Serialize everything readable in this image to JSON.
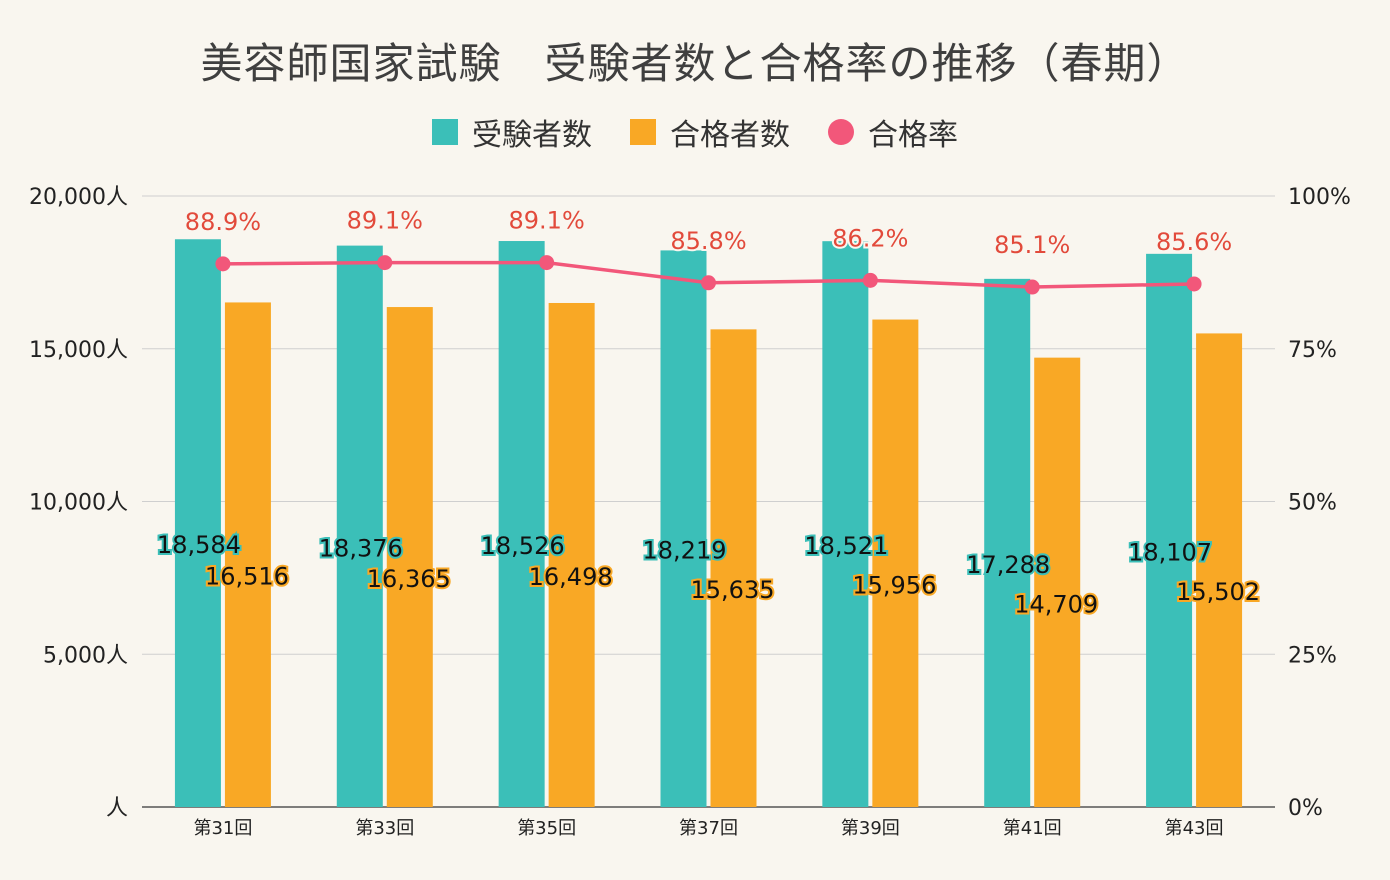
{
  "chart_data": {
    "type": "bar",
    "title": "美容師国家試験　受験者数と合格率の推移（春期）",
    "categories": [
      "第31回",
      "第33回",
      "第35回",
      "第37回",
      "第39回",
      "第41回",
      "第43回"
    ],
    "series": [
      {
        "name": "受験者数",
        "type": "bar",
        "axis": "left",
        "color": "#3bbfb8",
        "values": [
          18584,
          18376,
          18526,
          18219,
          18521,
          17288,
          18107
        ],
        "labels": [
          "18,584",
          "18,376",
          "18,526",
          "18,219",
          "18,521",
          "17,288",
          "18,107"
        ]
      },
      {
        "name": "合格者数",
        "type": "bar",
        "axis": "left",
        "color": "#f9a825",
        "values": [
          16516,
          16365,
          16498,
          15635,
          15956,
          14709,
          15502
        ],
        "labels": [
          "16,516",
          "16,365",
          "16,498",
          "15,635",
          "15,956",
          "14,709",
          "15,502"
        ]
      },
      {
        "name": "合格率",
        "type": "line",
        "axis": "right",
        "color": "#f2577a",
        "values": [
          88.9,
          89.1,
          89.1,
          85.8,
          86.2,
          85.1,
          85.6
        ],
        "labels": [
          "88.9%",
          "89.1%",
          "89.1%",
          "85.8%",
          "86.2%",
          "85.1%",
          "85.6%"
        ]
      }
    ],
    "ylim_left": [
      0,
      20000
    ],
    "ylim_right": [
      0,
      100
    ],
    "left_ticks": [
      "人",
      "5,000人",
      "10,000人",
      "15,000人",
      "20,000人"
    ],
    "right_ticks": [
      "0%",
      "25%",
      "50%",
      "75%",
      "100%"
    ],
    "grid": true,
    "legend_position": "top-center",
    "colors": {
      "rate_label": "#e24a3b",
      "gridline": "#cfcfcf",
      "axis_text": "#222222"
    }
  }
}
